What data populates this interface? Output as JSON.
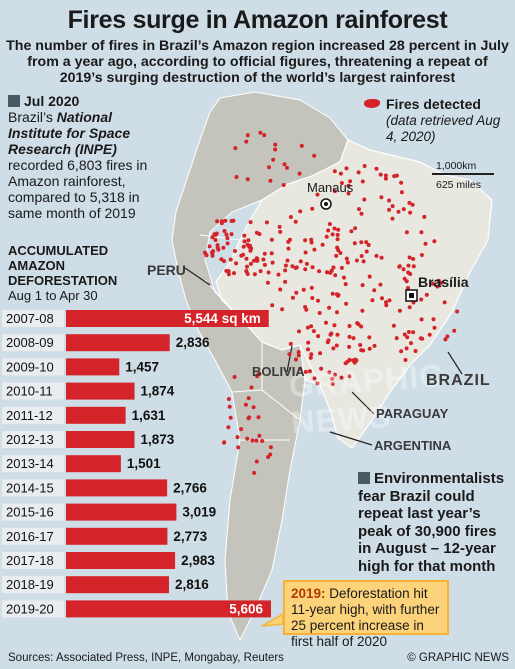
{
  "title": "Fires surge in Amazon rainforest",
  "subtitle": "The number of fires in Brazil’s Amazon region increased 28 percent in July from a year ago, according to official figures, threatening a repeat of 2019’s surging destruction of the world’s largest rainforest",
  "july_box": {
    "heading": "Jul 2020",
    "text_before": "Brazil’s",
    "institute": "National Institute for Space Research (INPE)",
    "text_after": "recorded 6,803 fires in Amazon rainforest, compared to 5,318 in same month of 2019"
  },
  "deforestation": {
    "heading1": "ACCUMULATED",
    "heading2": "AMAZON",
    "heading3": "DEFORESTATION",
    "period": "Aug 1 to Apr 30",
    "unit_note": "sq km"
  },
  "chart_data": {
    "type": "bar",
    "orientation": "horizontal",
    "categories": [
      "2007-08",
      "2008-09",
      "2009-10",
      "2010-11",
      "2011-12",
      "2012-13",
      "2013-14",
      "2014-15",
      "2015-16",
      "2016-17",
      "2017-18",
      "2018-19",
      "2019-20"
    ],
    "values": [
      5544,
      2836,
      1457,
      1874,
      1631,
      1873,
      1501,
      2766,
      3019,
      2773,
      2983,
      2816,
      5606
    ],
    "value_labels": [
      "5,544 sq km",
      "2,836",
      "1,457",
      "1,874",
      "1,631",
      "1,873",
      "1,501",
      "2,766",
      "3,019",
      "2,773",
      "2,983",
      "2,816",
      "5,606"
    ],
    "unit": "sq km",
    "xlim": [
      0,
      5606
    ]
  },
  "legend": {
    "fires": "Fires detected",
    "retrieved": "(data retrieved Aug 4, 2020)",
    "fire_color": "#d5232a"
  },
  "scale": {
    "km": "1,000km",
    "miles": "625 miles"
  },
  "map_labels": {
    "manaus": "Manaus",
    "brasilia": "Brasília",
    "peru": "PERU",
    "bolivia": "BOLIVIA",
    "brazil": "BRAZIL",
    "paraguay": "PARAGUAY",
    "argentina": "ARGENTINA"
  },
  "watermark": "GRAPHIC NEWS",
  "environmentalists": "Environmentalists fear Brazil could repeat last year’s peak of 30,900 fires in August – 12-year high for that month",
  "callout": {
    "year": "2019:",
    "text": "Deforestation hit 11-year high, with further 25 percent increase in first half of 2020"
  },
  "footer": {
    "sources": "Sources: Associated Press, INPE, Mongabay, Reuters",
    "credit": "© GRAPHIC NEWS"
  },
  "colors": {
    "sea": "#cfdde6",
    "brazil_land": "#e8e7e0",
    "other_land": "#c4c3bc",
    "bar": "#d5232a",
    "callout_bg": "#fcd27a"
  }
}
